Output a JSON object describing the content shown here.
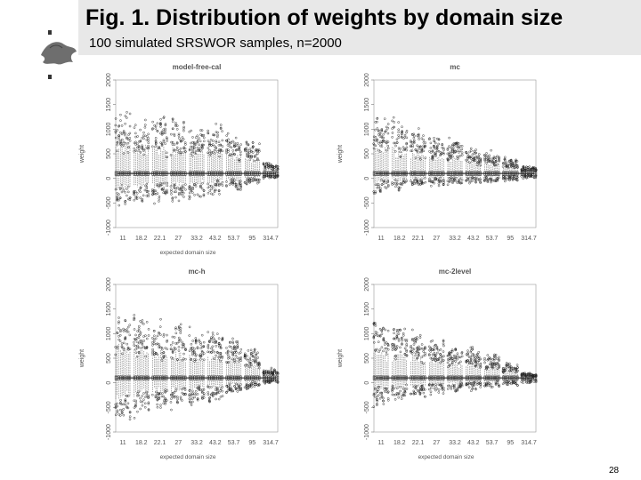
{
  "slide": {
    "title": "Fig. 1. Distribution of weights by domain size",
    "subtitle": "100 simulated SRSWOR samples, n=2000",
    "page_number": "28"
  },
  "chart_data": [
    {
      "type": "boxplot",
      "title": "model-free-cal",
      "xlabel": "expected domain size",
      "ylabel": "weight",
      "categories": [
        "11",
        "18.2",
        "22.1",
        "27",
        "33.2",
        "43.2",
        "53.7",
        "95",
        "314.7"
      ],
      "yticks": [
        -1000,
        -500,
        0,
        500,
        1000,
        1500,
        2000
      ],
      "ylim": [
        -1000,
        2000
      ],
      "median": 100,
      "spread_low": [
        -700,
        -650,
        -600,
        -550,
        -480,
        -400,
        -300,
        -150,
        -20
      ],
      "spread_high": [
        1600,
        1550,
        1500,
        1420,
        1350,
        1250,
        1100,
        850,
        350
      ]
    },
    {
      "type": "boxplot",
      "title": "mc",
      "xlabel": "",
      "ylabel": "weight",
      "categories": [
        "11",
        "18.2",
        "22.1",
        "27",
        "33.2",
        "43.2",
        "53.7",
        "95",
        "314.7"
      ],
      "yticks": [
        -1000,
        -500,
        0,
        500,
        1000,
        1500,
        2000
      ],
      "ylim": [
        -1000,
        2000
      ],
      "median": 100,
      "spread_low": [
        -350,
        -300,
        -260,
        -220,
        -180,
        -150,
        -120,
        -80,
        -20
      ],
      "spread_high": [
        1600,
        1300,
        1150,
        1000,
        900,
        750,
        650,
        450,
        250
      ]
    },
    {
      "type": "boxplot",
      "title": "mc-h",
      "xlabel": "expected domain size",
      "ylabel": "weight",
      "categories": [
        "11",
        "18.2",
        "22.1",
        "27",
        "33.2",
        "43.2",
        "53.7",
        "95",
        "314.7"
      ],
      "yticks": [
        -1000,
        -500,
        0,
        500,
        1000,
        1500,
        2000
      ],
      "ylim": [
        -1000,
        2000
      ],
      "median": 100,
      "spread_low": [
        -900,
        -800,
        -650,
        -580,
        -500,
        -420,
        -320,
        -180,
        -30
      ],
      "spread_high": [
        1700,
        1600,
        1500,
        1400,
        1300,
        1150,
        1000,
        800,
        320
      ]
    },
    {
      "type": "boxplot",
      "title": "mc-2level",
      "xlabel": "expected domain size",
      "ylabel": "weight",
      "categories": [
        "11",
        "18.2",
        "22.1",
        "27",
        "33.2",
        "43.2",
        "53.7",
        "95",
        "314.7"
      ],
      "yticks": [
        -1000,
        -500,
        0,
        500,
        1000,
        1500,
        2000
      ],
      "ylim": [
        -1000,
        2000
      ],
      "median": 100,
      "spread_low": [
        -550,
        -450,
        -380,
        -320,
        -260,
        -200,
        -150,
        -90,
        -20
      ],
      "spread_high": [
        1400,
        1300,
        1150,
        1050,
        900,
        780,
        650,
        450,
        220
      ]
    }
  ]
}
